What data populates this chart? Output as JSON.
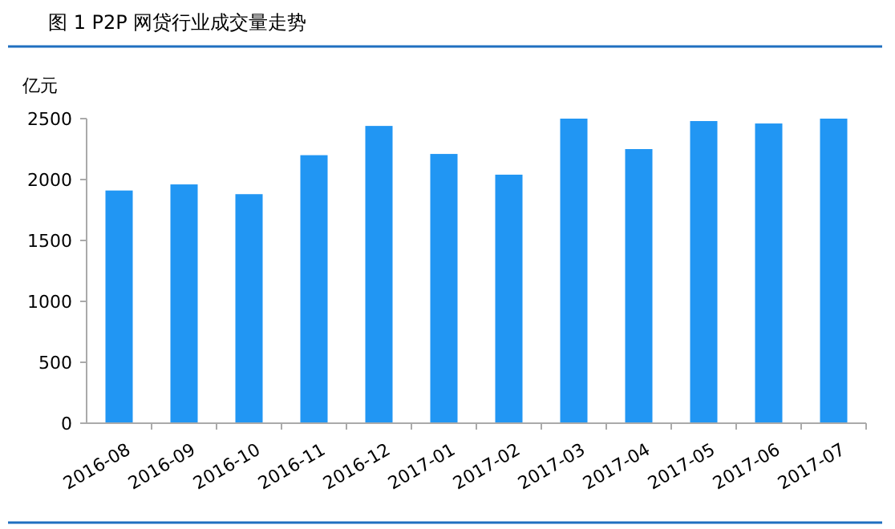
{
  "chart_data": {
    "type": "bar",
    "title": "图 1 P2P 网贷行业成交量走势",
    "ylabel": "亿元",
    "categories": [
      "2016-08",
      "2016-09",
      "2016-10",
      "2016-11",
      "2016-12",
      "2017-01",
      "2017-02",
      "2017-03",
      "2017-04",
      "2017-05",
      "2017-06",
      "2017-07"
    ],
    "values": [
      1910,
      1960,
      1880,
      2200,
      2440,
      2210,
      2040,
      2500,
      2250,
      2480,
      2460,
      2500
    ],
    "color": "#2196f3",
    "ylim": [
      0,
      2500
    ],
    "yticks": [
      0,
      500,
      1000,
      1500,
      2000,
      2500
    ]
  }
}
